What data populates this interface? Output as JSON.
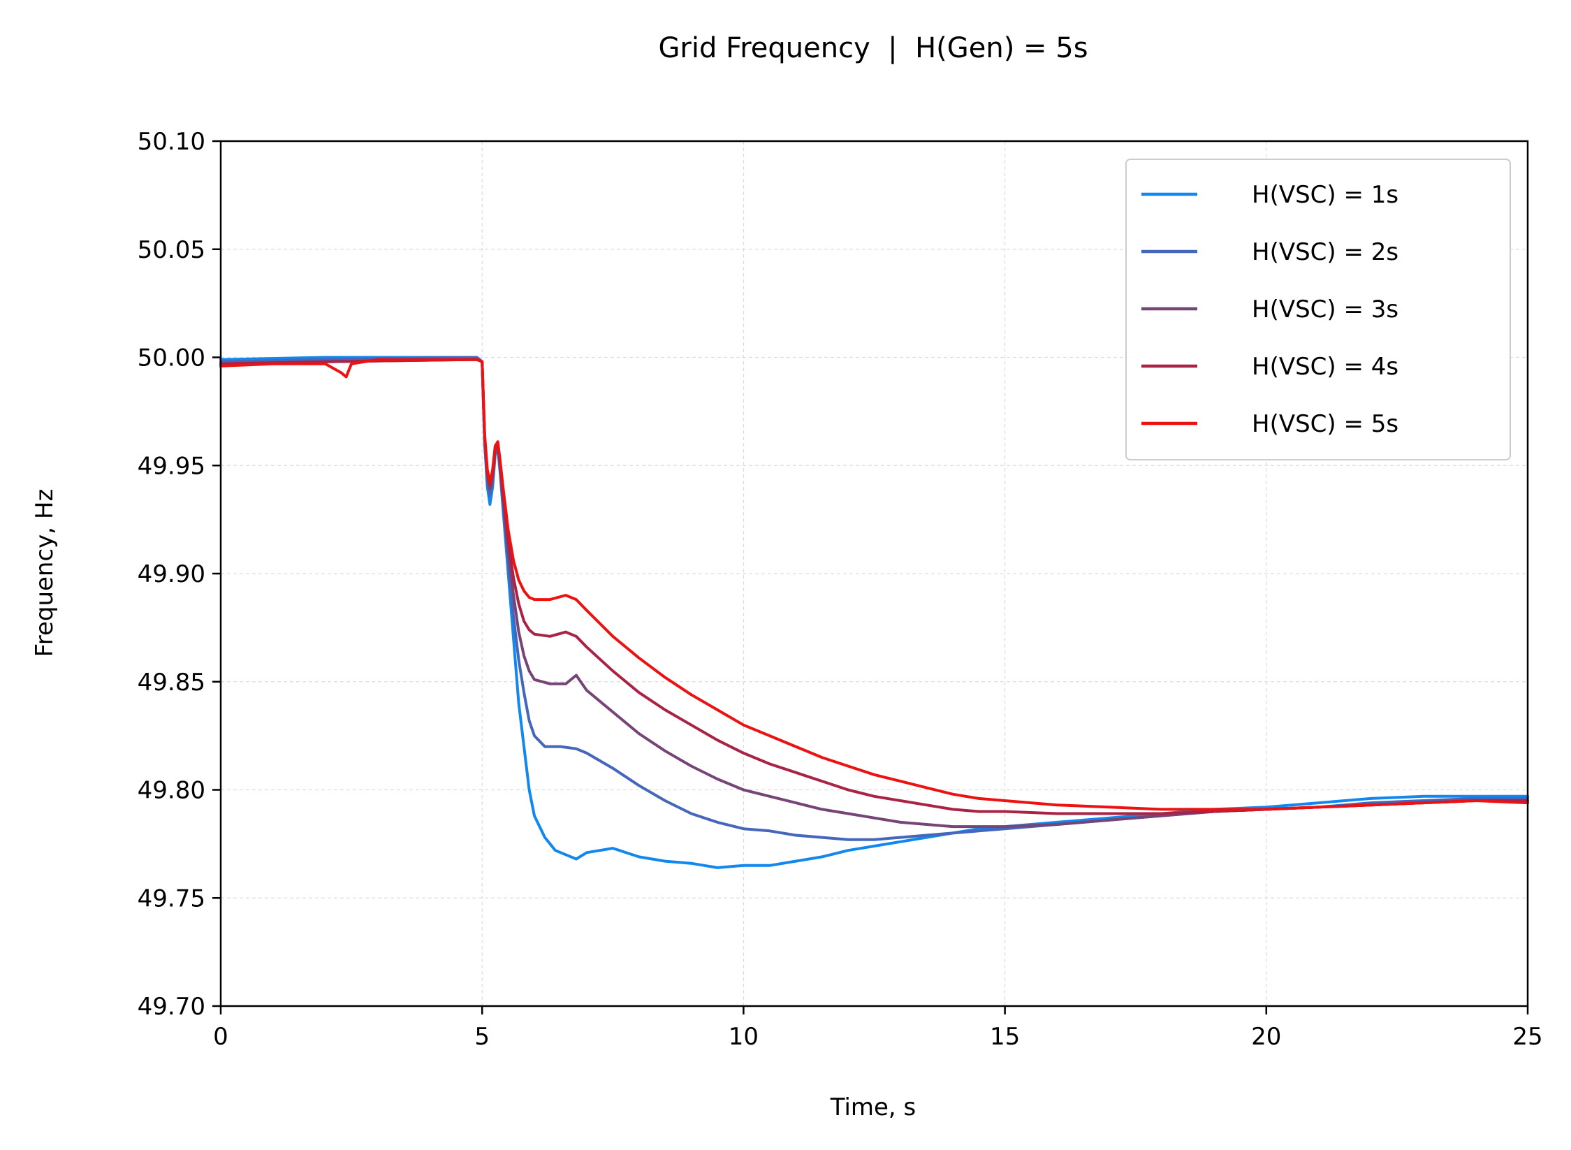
{
  "chart_data": {
    "type": "line",
    "title": "Grid Frequency  |  H(Gen) = 5s",
    "xlabel": "Time, s",
    "ylabel": "Frequency, Hz",
    "xlim": [
      0,
      25
    ],
    "ylim": [
      49.7,
      50.1
    ],
    "x_ticks": [
      "0",
      "5",
      "10",
      "15",
      "20",
      "25"
    ],
    "y_ticks": [
      "49.70",
      "49.75",
      "49.80",
      "49.85",
      "49.90",
      "49.95",
      "50.00",
      "50.05",
      "50.10"
    ],
    "grid": true,
    "legend_position": "top-right",
    "series": [
      {
        "name": "H(VSC) = 1s",
        "color": "#1188ee",
        "points": [
          [
            0,
            49.999
          ],
          [
            2,
            50.0
          ],
          [
            4.9,
            50.0
          ],
          [
            5.0,
            49.998
          ],
          [
            5.05,
            49.96
          ],
          [
            5.1,
            49.94
          ],
          [
            5.15,
            49.932
          ],
          [
            5.2,
            49.94
          ],
          [
            5.25,
            49.955
          ],
          [
            5.3,
            49.958
          ],
          [
            5.35,
            49.945
          ],
          [
            5.4,
            49.93
          ],
          [
            5.5,
            49.9
          ],
          [
            5.6,
            49.87
          ],
          [
            5.7,
            49.84
          ],
          [
            5.8,
            49.82
          ],
          [
            5.9,
            49.8
          ],
          [
            6.0,
            49.788
          ],
          [
            6.2,
            49.778
          ],
          [
            6.4,
            49.772
          ],
          [
            6.6,
            49.77
          ],
          [
            6.8,
            49.768
          ],
          [
            7.0,
            49.771
          ],
          [
            7.5,
            49.773
          ],
          [
            8.0,
            49.769
          ],
          [
            8.5,
            49.767
          ],
          [
            9.0,
            49.766
          ],
          [
            9.5,
            49.764
          ],
          [
            10.0,
            49.765
          ],
          [
            10.5,
            49.765
          ],
          [
            11.0,
            49.767
          ],
          [
            11.5,
            49.769
          ],
          [
            12.0,
            49.772
          ],
          [
            12.5,
            49.774
          ],
          [
            13.0,
            49.776
          ],
          [
            13.5,
            49.778
          ],
          [
            14.0,
            49.78
          ],
          [
            14.5,
            49.782
          ],
          [
            15.0,
            49.783
          ],
          [
            16.0,
            49.785
          ],
          [
            17.0,
            49.787
          ],
          [
            18.0,
            49.789
          ],
          [
            19.0,
            49.791
          ],
          [
            20.0,
            49.792
          ],
          [
            21.0,
            49.794
          ],
          [
            22.0,
            49.796
          ],
          [
            23.0,
            49.797
          ],
          [
            24.0,
            49.797
          ],
          [
            25.0,
            49.797
          ]
        ]
      },
      {
        "name": "H(VSC) = 2s",
        "color": "#4466bb",
        "points": [
          [
            0,
            49.998
          ],
          [
            2,
            49.999
          ],
          [
            4.9,
            50.0
          ],
          [
            5.0,
            49.998
          ],
          [
            5.05,
            49.96
          ],
          [
            5.1,
            49.942
          ],
          [
            5.15,
            49.936
          ],
          [
            5.2,
            49.942
          ],
          [
            5.25,
            49.956
          ],
          [
            5.3,
            49.958
          ],
          [
            5.35,
            49.947
          ],
          [
            5.4,
            49.932
          ],
          [
            5.5,
            49.905
          ],
          [
            5.6,
            49.88
          ],
          [
            5.7,
            49.86
          ],
          [
            5.8,
            49.845
          ],
          [
            5.9,
            49.832
          ],
          [
            6.0,
            49.825
          ],
          [
            6.2,
            49.82
          ],
          [
            6.5,
            49.82
          ],
          [
            6.8,
            49.819
          ],
          [
            7.0,
            49.817
          ],
          [
            7.5,
            49.81
          ],
          [
            8.0,
            49.802
          ],
          [
            8.5,
            49.795
          ],
          [
            9.0,
            49.789
          ],
          [
            9.5,
            49.785
          ],
          [
            10.0,
            49.782
          ],
          [
            10.5,
            49.781
          ],
          [
            11.0,
            49.779
          ],
          [
            11.5,
            49.778
          ],
          [
            12.0,
            49.777
          ],
          [
            12.5,
            49.777
          ],
          [
            13.0,
            49.778
          ],
          [
            13.5,
            49.779
          ],
          [
            14.0,
            49.78
          ],
          [
            14.5,
            49.781
          ],
          [
            15.0,
            49.782
          ],
          [
            16.0,
            49.784
          ],
          [
            17.0,
            49.786
          ],
          [
            18.0,
            49.788
          ],
          [
            19.0,
            49.79
          ],
          [
            20.0,
            49.791
          ],
          [
            21.0,
            49.792
          ],
          [
            22.0,
            49.794
          ],
          [
            23.0,
            49.795
          ],
          [
            24.0,
            49.796
          ],
          [
            25.0,
            49.796
          ]
        ]
      },
      {
        "name": "H(VSC) = 3s",
        "color": "#774477",
        "points": [
          [
            0,
            49.997
          ],
          [
            2,
            49.998
          ],
          [
            4.9,
            49.999
          ],
          [
            5.0,
            49.998
          ],
          [
            5.05,
            49.962
          ],
          [
            5.1,
            49.945
          ],
          [
            5.15,
            49.939
          ],
          [
            5.2,
            49.945
          ],
          [
            5.25,
            49.957
          ],
          [
            5.3,
            49.959
          ],
          [
            5.35,
            49.949
          ],
          [
            5.4,
            49.935
          ],
          [
            5.5,
            49.91
          ],
          [
            5.6,
            49.89
          ],
          [
            5.7,
            49.873
          ],
          [
            5.8,
            49.862
          ],
          [
            5.9,
            49.855
          ],
          [
            6.0,
            49.851
          ],
          [
            6.3,
            49.849
          ],
          [
            6.6,
            49.849
          ],
          [
            6.8,
            49.853
          ],
          [
            7.0,
            49.846
          ],
          [
            7.5,
            49.836
          ],
          [
            8.0,
            49.826
          ],
          [
            8.5,
            49.818
          ],
          [
            9.0,
            49.811
          ],
          [
            9.5,
            49.805
          ],
          [
            10.0,
            49.8
          ],
          [
            10.5,
            49.797
          ],
          [
            11.0,
            49.794
          ],
          [
            11.5,
            49.791
          ],
          [
            12.0,
            49.789
          ],
          [
            12.5,
            49.787
          ],
          [
            13.0,
            49.785
          ],
          [
            13.5,
            49.784
          ],
          [
            14.0,
            49.783
          ],
          [
            14.5,
            49.783
          ],
          [
            15.0,
            49.783
          ],
          [
            16.0,
            49.784
          ],
          [
            17.0,
            49.786
          ],
          [
            18.0,
            49.788
          ],
          [
            19.0,
            49.79
          ],
          [
            20.0,
            49.791
          ],
          [
            21.0,
            49.792
          ],
          [
            22.0,
            49.793
          ],
          [
            23.0,
            49.794
          ],
          [
            24.0,
            49.795
          ],
          [
            25.0,
            49.795
          ]
        ]
      },
      {
        "name": "H(VSC) = 4s",
        "color": "#aa2244",
        "points": [
          [
            0,
            49.997
          ],
          [
            2,
            49.998
          ],
          [
            4.9,
            49.999
          ],
          [
            5.0,
            49.998
          ],
          [
            5.05,
            49.963
          ],
          [
            5.1,
            49.947
          ],
          [
            5.15,
            49.941
          ],
          [
            5.2,
            49.947
          ],
          [
            5.25,
            49.958
          ],
          [
            5.3,
            49.96
          ],
          [
            5.35,
            49.95
          ],
          [
            5.4,
            49.938
          ],
          [
            5.5,
            49.915
          ],
          [
            5.6,
            49.898
          ],
          [
            5.7,
            49.886
          ],
          [
            5.8,
            49.878
          ],
          [
            5.9,
            49.874
          ],
          [
            6.0,
            49.872
          ],
          [
            6.3,
            49.871
          ],
          [
            6.6,
            49.873
          ],
          [
            6.8,
            49.871
          ],
          [
            7.0,
            49.866
          ],
          [
            7.5,
            49.855
          ],
          [
            8.0,
            49.845
          ],
          [
            8.5,
            49.837
          ],
          [
            9.0,
            49.83
          ],
          [
            9.5,
            49.823
          ],
          [
            10.0,
            49.817
          ],
          [
            10.5,
            49.812
          ],
          [
            11.0,
            49.808
          ],
          [
            11.5,
            49.804
          ],
          [
            12.0,
            49.8
          ],
          [
            12.5,
            49.797
          ],
          [
            13.0,
            49.795
          ],
          [
            13.5,
            49.793
          ],
          [
            14.0,
            49.791
          ],
          [
            14.5,
            49.79
          ],
          [
            15.0,
            49.79
          ],
          [
            16.0,
            49.789
          ],
          [
            17.0,
            49.789
          ],
          [
            18.0,
            49.789
          ],
          [
            19.0,
            49.79
          ],
          [
            20.0,
            49.791
          ],
          [
            21.0,
            49.792
          ],
          [
            22.0,
            49.793
          ],
          [
            23.0,
            49.794
          ],
          [
            24.0,
            49.795
          ],
          [
            25.0,
            49.795
          ]
        ]
      },
      {
        "name": "H(VSC) = 5s",
        "color": "#ee1111",
        "points": [
          [
            0,
            49.996
          ],
          [
            1.0,
            49.997
          ],
          [
            2.0,
            49.997
          ],
          [
            2.3,
            49.993
          ],
          [
            2.4,
            49.991
          ],
          [
            2.5,
            49.997
          ],
          [
            3.0,
            49.999
          ],
          [
            4.0,
            49.999
          ],
          [
            4.9,
            49.999
          ],
          [
            5.0,
            49.998
          ],
          [
            5.05,
            49.964
          ],
          [
            5.1,
            49.948
          ],
          [
            5.15,
            49.942
          ],
          [
            5.2,
            49.948
          ],
          [
            5.25,
            49.959
          ],
          [
            5.3,
            49.961
          ],
          [
            5.35,
            49.951
          ],
          [
            5.4,
            49.94
          ],
          [
            5.5,
            49.92
          ],
          [
            5.6,
            49.906
          ],
          [
            5.7,
            49.897
          ],
          [
            5.8,
            49.892
          ],
          [
            5.9,
            49.889
          ],
          [
            6.0,
            49.888
          ],
          [
            6.3,
            49.888
          ],
          [
            6.6,
            49.89
          ],
          [
            6.8,
            49.888
          ],
          [
            7.0,
            49.883
          ],
          [
            7.5,
            49.871
          ],
          [
            8.0,
            49.861
          ],
          [
            8.5,
            49.852
          ],
          [
            9.0,
            49.844
          ],
          [
            9.5,
            49.837
          ],
          [
            10.0,
            49.83
          ],
          [
            10.5,
            49.825
          ],
          [
            11.0,
            49.82
          ],
          [
            11.5,
            49.815
          ],
          [
            12.0,
            49.811
          ],
          [
            12.5,
            49.807
          ],
          [
            13.0,
            49.804
          ],
          [
            13.5,
            49.801
          ],
          [
            14.0,
            49.798
          ],
          [
            14.5,
            49.796
          ],
          [
            15.0,
            49.795
          ],
          [
            16.0,
            49.793
          ],
          [
            17.0,
            49.792
          ],
          [
            18.0,
            49.791
          ],
          [
            19.0,
            49.791
          ],
          [
            20.0,
            49.791
          ],
          [
            21.0,
            49.792
          ],
          [
            22.0,
            49.793
          ],
          [
            23.0,
            49.794
          ],
          [
            24.0,
            49.795
          ],
          [
            25.0,
            49.794
          ]
        ]
      }
    ]
  }
}
